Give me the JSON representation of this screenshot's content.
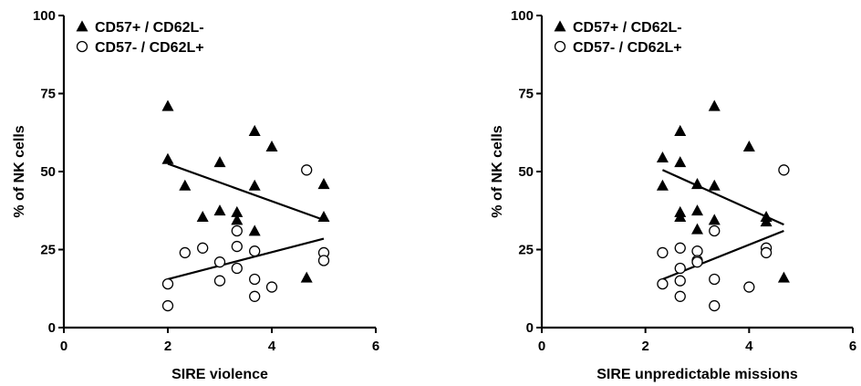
{
  "chart_data": [
    {
      "type": "scatter",
      "xlabel": "SIRE violence",
      "ylabel": "% of NK cells",
      "xlim": [
        0,
        6
      ],
      "ylim": [
        0,
        100
      ],
      "xticks": [
        0,
        2,
        4,
        6
      ],
      "yticks": [
        0,
        25,
        50,
        75,
        100
      ],
      "legend": "top-left",
      "series": [
        {
          "name": "CD57+ / CD62L-",
          "marker": "filled-triangle",
          "points": [
            [
              2,
              71
            ],
            [
              2,
              54
            ],
            [
              2.33,
              45.5
            ],
            [
              2.67,
              35.5
            ],
            [
              3,
              53
            ],
            [
              3,
              37.5
            ],
            [
              3.33,
              37
            ],
            [
              3.33,
              34.5
            ],
            [
              3.67,
              63
            ],
            [
              3.67,
              45.5
            ],
            [
              3.67,
              31
            ],
            [
              4,
              58
            ],
            [
              4.67,
              16
            ],
            [
              5,
              46
            ],
            [
              5,
              35.5
            ]
          ],
          "fit": [
            [
              2,
              52.5
            ],
            [
              5,
              34.5
            ]
          ]
        },
        {
          "name": "CD57- / CD62L+",
          "marker": "open-circle",
          "points": [
            [
              2,
              14
            ],
            [
              2,
              7
            ],
            [
              2.33,
              24
            ],
            [
              2.67,
              25.5
            ],
            [
              3,
              21
            ],
            [
              3,
              15
            ],
            [
              3.33,
              31
            ],
            [
              3.33,
              26
            ],
            [
              3.33,
              19
            ],
            [
              3.67,
              24.5
            ],
            [
              3.67,
              15.5
            ],
            [
              3.67,
              10
            ],
            [
              4,
              13
            ],
            [
              4.67,
              50.5
            ],
            [
              5,
              24
            ],
            [
              5,
              21.5
            ]
          ],
          "fit": [
            [
              2,
              15.5
            ],
            [
              5,
              28.5
            ]
          ]
        }
      ]
    },
    {
      "type": "scatter",
      "xlabel": "SIRE unpredictable missions",
      "ylabel": "% of NK cells",
      "xlim": [
        0,
        6
      ],
      "ylim": [
        0,
        100
      ],
      "xticks": [
        0,
        2,
        4,
        6
      ],
      "yticks": [
        0,
        25,
        50,
        75,
        100
      ],
      "legend": "top-left",
      "series": [
        {
          "name": "CD57+ / CD62L-",
          "marker": "filled-triangle",
          "points": [
            [
              2.33,
              54.5
            ],
            [
              2.33,
              45.5
            ],
            [
              2.67,
              63
            ],
            [
              2.67,
              53
            ],
            [
              2.67,
              37
            ],
            [
              2.67,
              35.5
            ],
            [
              3,
              46
            ],
            [
              3,
              37.5
            ],
            [
              3,
              31.5
            ],
            [
              3.33,
              71
            ],
            [
              3.33,
              45.5
            ],
            [
              3.33,
              34.5
            ],
            [
              4,
              58
            ],
            [
              4.33,
              35.5
            ],
            [
              4.33,
              34
            ],
            [
              4.67,
              16
            ]
          ],
          "fit": [
            [
              2.33,
              50.5
            ],
            [
              4.67,
              33
            ]
          ]
        },
        {
          "name": "CD57- / CD62L+",
          "marker": "open-circle",
          "points": [
            [
              2.33,
              24
            ],
            [
              2.33,
              14
            ],
            [
              2.67,
              25.5
            ],
            [
              2.67,
              19
            ],
            [
              2.67,
              15
            ],
            [
              2.67,
              10
            ],
            [
              3,
              24.5
            ],
            [
              3,
              21.5
            ],
            [
              3,
              21
            ],
            [
              3.33,
              31
            ],
            [
              3.33,
              15.5
            ],
            [
              3.33,
              7
            ],
            [
              4,
              13
            ],
            [
              4.33,
              25.5
            ],
            [
              4.33,
              24
            ],
            [
              4.67,
              50.5
            ]
          ],
          "fit": [
            [
              2.33,
              15.5
            ],
            [
              4.67,
              31
            ]
          ]
        }
      ]
    }
  ]
}
